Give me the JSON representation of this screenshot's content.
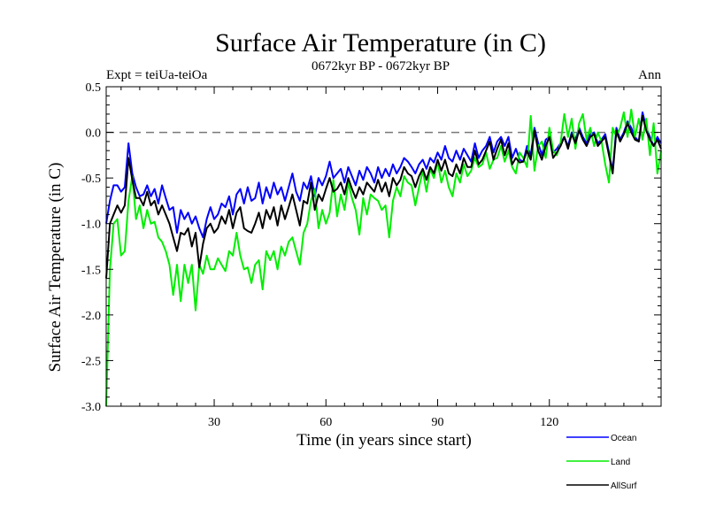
{
  "chart_data": {
    "type": "line",
    "title": "Surface Air Temperature (in C)",
    "subtitle": "0672kyr BP - 0672kyr BP",
    "left_label": "Expt = teiUa-teiOa",
    "right_label": "Ann",
    "xlabel": "Time (in years since start)",
    "ylabel": "Surface Air Temperature (in C)",
    "xlim": [
      1,
      150
    ],
    "ylim": [
      -3.0,
      0.5
    ],
    "xticks": [
      30,
      60,
      90,
      120
    ],
    "xtick_labels": [
      "30",
      "60",
      "90",
      "120"
    ],
    "yticks": [
      -3.0,
      -2.5,
      -2.0,
      -1.5,
      -1.0,
      -0.5,
      0.0,
      0.5
    ],
    "ytick_labels": [
      "-3.0",
      "-2.5",
      "-2.0",
      "-1.5",
      "-1.0",
      "-0.5",
      "0.0",
      "0.5"
    ],
    "reference_line": 0.0,
    "x_start": 1,
    "x_step": 1,
    "series": [
      {
        "name": "Ocean",
        "color": "#0000ff",
        "values": [
          -1.0,
          -0.75,
          -0.58,
          -0.58,
          -0.65,
          -0.6,
          -0.12,
          -0.45,
          -0.6,
          -0.7,
          -0.68,
          -0.58,
          -0.7,
          -0.62,
          -0.78,
          -0.58,
          -0.72,
          -0.85,
          -0.82,
          -1.1,
          -0.85,
          -0.95,
          -0.88,
          -1.0,
          -0.92,
          -1.05,
          -1.15,
          -0.95,
          -0.82,
          -0.95,
          -0.9,
          -0.78,
          -0.82,
          -0.7,
          -0.9,
          -0.68,
          -0.62,
          -0.78,
          -0.6,
          -0.75,
          -0.72,
          -0.55,
          -0.78,
          -0.6,
          -0.72,
          -0.55,
          -0.68,
          -0.6,
          -0.75,
          -0.6,
          -0.45,
          -0.65,
          -0.75,
          -0.55,
          -0.62,
          -0.48,
          -0.7,
          -0.5,
          -0.58,
          -0.48,
          -0.32,
          -0.5,
          -0.45,
          -0.4,
          -0.55,
          -0.38,
          -0.48,
          -0.58,
          -0.42,
          -0.52,
          -0.38,
          -0.45,
          -0.55,
          -0.38,
          -0.5,
          -0.4,
          -0.48,
          -0.35,
          -0.45,
          -0.38,
          -0.28,
          -0.32,
          -0.38,
          -0.45,
          -0.35,
          -0.3,
          -0.4,
          -0.28,
          -0.33,
          -0.22,
          -0.3,
          -0.15,
          -0.28,
          -0.32,
          -0.2,
          -0.3,
          -0.18,
          -0.25,
          -0.32,
          -0.12,
          -0.28,
          -0.2,
          -0.15,
          -0.05,
          -0.22,
          -0.1,
          -0.05,
          -0.15,
          -0.05,
          -0.28,
          -0.18,
          -0.3,
          -0.32,
          -0.15,
          -0.25,
          0.05,
          -0.12,
          -0.25,
          -0.08,
          -0.05,
          -0.22,
          -0.18,
          -0.12,
          -0.05,
          -0.15,
          0.0,
          -0.08,
          0.05,
          -0.05,
          -0.12,
          -0.02,
          0.0,
          -0.12,
          -0.08,
          -0.02,
          -0.22,
          -0.42,
          0.05,
          -0.08,
          0.0,
          0.12,
          0.05,
          -0.05,
          -0.1,
          0.22,
          0.05,
          -0.05,
          -0.15,
          -0.05,
          -0.12
        ]
      },
      {
        "name": "Land",
        "color": "#00ee00",
        "values": [
          -3.0,
          -1.5,
          -1.0,
          -0.95,
          -1.35,
          -1.3,
          -0.75,
          -0.48,
          -0.95,
          -0.8,
          -1.05,
          -0.85,
          -1.0,
          -0.98,
          -1.15,
          -1.2,
          -1.3,
          -1.45,
          -1.78,
          -1.45,
          -1.85,
          -1.45,
          -1.65,
          -1.45,
          -1.95,
          -1.45,
          -1.55,
          -1.35,
          -1.5,
          -1.5,
          -1.38,
          -1.45,
          -1.52,
          -1.3,
          -1.35,
          -1.1,
          -1.35,
          -1.5,
          -1.48,
          -1.65,
          -1.45,
          -1.4,
          -1.72,
          -1.3,
          -1.4,
          -1.3,
          -1.5,
          -1.25,
          -1.35,
          -1.2,
          -1.15,
          -1.3,
          -1.45,
          -1.1,
          -1.0,
          -0.75,
          -0.62,
          -1.05,
          -0.85,
          -1.0,
          -0.88,
          -0.52,
          -0.92,
          -0.68,
          -0.85,
          -0.55,
          -0.72,
          -0.85,
          -1.12,
          -0.72,
          -0.9,
          -0.68,
          -0.72,
          -0.75,
          -0.85,
          -0.8,
          -1.15,
          -0.75,
          -0.6,
          -0.7,
          -0.48,
          -0.55,
          -0.58,
          -0.8,
          -0.6,
          -0.42,
          -0.65,
          -0.4,
          -0.5,
          -0.32,
          -0.55,
          -0.42,
          -0.6,
          -0.7,
          -0.45,
          -0.55,
          -0.35,
          -0.48,
          -0.42,
          -0.28,
          -0.38,
          -0.35,
          -0.22,
          -0.4,
          -0.3,
          -0.28,
          -0.15,
          -0.32,
          -0.2,
          -0.38,
          -0.45,
          -0.22,
          -0.28,
          -0.38,
          0.18,
          -0.42,
          -0.15,
          -0.1,
          -0.28,
          0.05,
          -0.2,
          -0.25,
          -0.12,
          0.2,
          -0.05,
          0.15,
          -0.18,
          0.1,
          0.2,
          -0.08,
          0.05,
          -0.15,
          0.0,
          -0.1,
          -0.35,
          -0.55,
          0.05,
          -0.05,
          0.05,
          0.22,
          -0.05,
          0.25,
          -0.05,
          0.15,
          -0.08,
          0.15,
          -0.25,
          0.1,
          -0.45,
          -0.2
        ]
      },
      {
        "name": "AllSurf",
        "color": "#000000",
        "values": [
          -1.6,
          -1.0,
          -0.9,
          -0.8,
          -0.88,
          -0.8,
          -0.28,
          -0.52,
          -0.72,
          -0.72,
          -0.8,
          -0.65,
          -0.8,
          -0.75,
          -0.9,
          -0.8,
          -0.9,
          -1.0,
          -1.15,
          -1.3,
          -1.1,
          -1.12,
          -1.05,
          -1.25,
          -1.1,
          -1.48,
          -1.22,
          -1.05,
          -1.0,
          -1.1,
          -1.05,
          -0.92,
          -1.0,
          -0.85,
          -1.05,
          -0.88,
          -0.82,
          -1.05,
          -1.08,
          -1.1,
          -1.0,
          -0.88,
          -1.05,
          -0.85,
          -0.95,
          -0.82,
          -1.02,
          -0.8,
          -0.95,
          -0.82,
          -0.68,
          -0.85,
          -1.02,
          -0.75,
          -0.78,
          -0.55,
          -0.85,
          -0.68,
          -0.75,
          -0.62,
          -0.5,
          -0.65,
          -0.62,
          -0.55,
          -0.68,
          -0.5,
          -0.62,
          -0.72,
          -0.6,
          -0.68,
          -0.55,
          -0.6,
          -0.65,
          -0.52,
          -0.65,
          -0.55,
          -0.7,
          -0.5,
          -0.58,
          -0.52,
          -0.38,
          -0.45,
          -0.48,
          -0.6,
          -0.48,
          -0.4,
          -0.52,
          -0.38,
          -0.45,
          -0.3,
          -0.42,
          -0.3,
          -0.45,
          -0.48,
          -0.35,
          -0.45,
          -0.28,
          -0.38,
          -0.38,
          -0.2,
          -0.35,
          -0.3,
          -0.2,
          -0.1,
          -0.3,
          -0.18,
          -0.08,
          -0.25,
          -0.12,
          -0.35,
          -0.28,
          -0.33,
          -0.32,
          -0.2,
          -0.3,
          0.02,
          -0.2,
          -0.3,
          -0.15,
          -0.05,
          -0.28,
          -0.22,
          -0.15,
          -0.05,
          -0.18,
          -0.02,
          -0.12,
          0.02,
          -0.08,
          -0.15,
          -0.05,
          -0.02,
          -0.15,
          -0.1,
          -0.05,
          -0.25,
          -0.45,
          0.02,
          -0.1,
          -0.02,
          0.1,
          0.0,
          -0.08,
          -0.1,
          0.18,
          0.02,
          -0.08,
          -0.15,
          -0.08,
          -0.18
        ]
      }
    ]
  }
}
